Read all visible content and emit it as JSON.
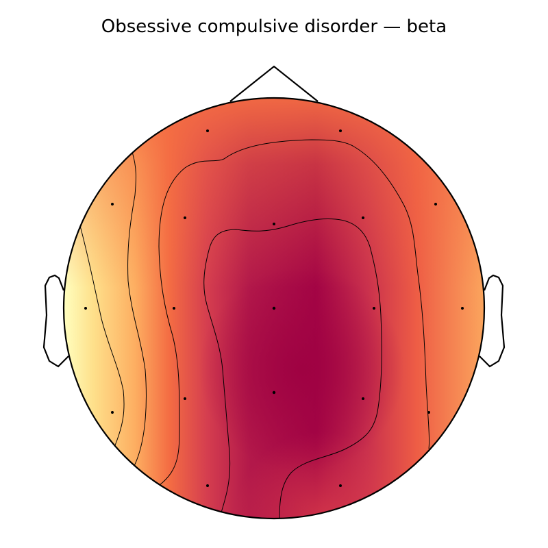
{
  "figure": {
    "title": "Obsessive compulsive disorder — beta",
    "colormap": [
      "#9e0142",
      "#d53e4f",
      "#f46d43",
      "#fdae61",
      "#fee08b",
      "#ffffbf"
    ],
    "outline_color": "#000000",
    "sensor_count": 19,
    "contour_count": 4
  }
}
